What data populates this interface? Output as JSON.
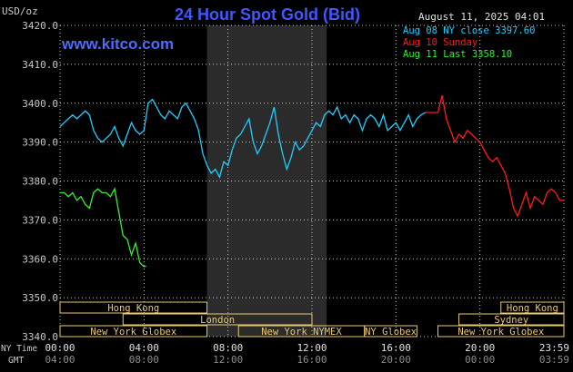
{
  "header": {
    "title": "24 Hour Spot Gold (Bid)",
    "currency_label": "USD/oz",
    "date_label": "August 11, 2025 04:01",
    "site": "www.kitco.com"
  },
  "legend": [
    {
      "text": "Aug 08 NY close 3397.60",
      "color": "#22ccff"
    },
    {
      "text": "Aug 10 Sunday",
      "color": "#ff1a1a"
    },
    {
      "text": "Aug 11 Last 3358.10",
      "color": "#33ee33"
    }
  ],
  "axis": {
    "y_ticks": [
      "3420.0",
      "3410.0",
      "3400.0",
      "3390.0",
      "3380.0",
      "3370.0",
      "3360.0",
      "3350.0",
      "3340.0"
    ],
    "ny_time_label": "NY Time",
    "gmt_label": "GMT",
    "ny_ticks": [
      "00:00",
      "04:00",
      "08:00",
      "12:00",
      "16:00",
      "20:00",
      "23:59"
    ],
    "gmt_ticks": [
      "04:00",
      "08:00",
      "12:00",
      "16:00",
      "20:00",
      "00:00",
      "03:59"
    ]
  },
  "sessions": {
    "hong_kong_1": "Hong Kong",
    "hong_kong_2": "Hong Kong",
    "london": "London",
    "new_york_globex_1": "New York Globex",
    "new_york_globex_2": "New York Globex",
    "new_york_nymex": "New York NYMEX",
    "ny_globex": "NY Globex",
    "sydney": "Sydney"
  },
  "colors": {
    "background": "#000000",
    "grid": "#c8c8c8",
    "highlight": "#2b2b2b",
    "title": "#3f57ff",
    "site": "#4f6bff",
    "session_box": "#e8c870",
    "tick_gray": "#8c8c8c"
  },
  "chart_data": {
    "type": "line",
    "x_unit": "NY time (hours)",
    "x_range": [
      0,
      24
    ],
    "ylim": [
      3340,
      3420
    ],
    "highlighted_x_range": [
      7.0,
      12.7
    ],
    "series": [
      {
        "name": "Aug 08 NY close 3397.60",
        "color": "#22ccff",
        "x": [
          0.0,
          0.2,
          0.4,
          0.6,
          0.8,
          1.0,
          1.2,
          1.4,
          1.6,
          1.8,
          2.0,
          2.2,
          2.4,
          2.6,
          2.8,
          3.0,
          3.2,
          3.4,
          3.6,
          3.8,
          4.0,
          4.2,
          4.4,
          4.6,
          4.8,
          5.0,
          5.2,
          5.4,
          5.6,
          5.8,
          6.0,
          6.2,
          6.4,
          6.6,
          6.8,
          7.0,
          7.2,
          7.4,
          7.6,
          7.8,
          8.0,
          8.2,
          8.4,
          8.6,
          8.8,
          9.0,
          9.2,
          9.4,
          9.6,
          9.8,
          10.0,
          10.2,
          10.4,
          10.6,
          10.8,
          11.0,
          11.2,
          11.4,
          11.6,
          11.8,
          12.0,
          12.2,
          12.4,
          12.6,
          12.8,
          13.0,
          13.2,
          13.4,
          13.6,
          13.8,
          14.0,
          14.2,
          14.4,
          14.6,
          14.8,
          15.0,
          15.2,
          15.4,
          15.6,
          15.8,
          16.0,
          16.2,
          16.4,
          16.6,
          16.8,
          17.0,
          17.2,
          17.4
        ],
        "y": [
          3394,
          3395,
          3396,
          3397,
          3396,
          3397,
          3398,
          3397,
          3393,
          3391,
          3390,
          3391,
          3392,
          3394,
          3391,
          3389,
          3392,
          3395,
          3393,
          3392,
          3393,
          3400,
          3401,
          3399,
          3397,
          3396,
          3398,
          3397,
          3396,
          3399,
          3400,
          3398,
          3396,
          3393,
          3387,
          3384,
          3382,
          3383,
          3381,
          3385,
          3384,
          3388,
          3391,
          3392,
          3394,
          3396,
          3390,
          3387,
          3389,
          3392,
          3395,
          3399,
          3392,
          3387,
          3383,
          3386,
          3390,
          3388,
          3389,
          3391,
          3393,
          3395,
          3394,
          3397,
          3398,
          3397,
          3399,
          3396,
          3397,
          3395,
          3397,
          3396,
          3393,
          3396,
          3397,
          3396,
          3394,
          3397,
          3393,
          3394,
          3395,
          3393,
          3395,
          3397,
          3394,
          3396,
          3397,
          3397.6
        ]
      },
      {
        "name": "Aug 10 Sunday",
        "color": "#ff1a1a",
        "x": [
          17.4,
          17.6,
          17.8,
          18.0,
          18.2,
          18.4,
          18.6,
          18.8,
          19.0,
          19.2,
          19.4,
          19.6,
          19.8,
          20.0,
          20.2,
          20.4,
          20.6,
          20.8,
          21.0,
          21.2,
          21.4,
          21.6,
          21.8,
          22.0,
          22.2,
          22.4,
          22.6,
          22.8,
          23.0,
          23.2,
          23.4,
          23.6,
          23.8,
          24.0
        ],
        "y": [
          3397.6,
          3397.6,
          3397.6,
          3397.6,
          3402,
          3396,
          3393,
          3390,
          3392,
          3391,
          3393,
          3392,
          3391,
          3390,
          3388,
          3386,
          3385,
          3386,
          3384,
          3382,
          3378,
          3373,
          3371,
          3374,
          3377,
          3373,
          3376,
          3375,
          3374,
          3377,
          3378,
          3377,
          3375,
          3375
        ]
      },
      {
        "name": "Aug 11 Last 3358.10",
        "color": "#33ee33",
        "x": [
          0.0,
          0.2,
          0.4,
          0.6,
          0.8,
          1.0,
          1.2,
          1.4,
          1.6,
          1.8,
          2.0,
          2.2,
          2.4,
          2.6,
          2.8,
          3.0,
          3.2,
          3.4,
          3.6,
          3.8,
          4.0,
          4.1
        ],
        "y": [
          3377,
          3377,
          3376,
          3377,
          3375,
          3376,
          3374,
          3373,
          3377,
          3378,
          3377,
          3377,
          3376,
          3378,
          3372,
          3366,
          3365,
          3361,
          3364,
          3359,
          3358,
          3358.1
        ]
      }
    ],
    "session_bars": [
      {
        "key": "hong_kong_1",
        "x0": 0.0,
        "x1": 7.0,
        "row": 0
      },
      {
        "key": "hong_kong_2",
        "x0": 21.0,
        "x1": 24.0,
        "row": 0
      },
      {
        "key": "london",
        "x0": 3.0,
        "x1": 12.0,
        "row": 1
      },
      {
        "key": "sydney",
        "x0": 19.0,
        "x1": 24.0,
        "row": 1
      },
      {
        "key": "new_york_globex_1",
        "x0": 0.0,
        "x1": 7.0,
        "row": 2
      },
      {
        "key": "new_york_nymex",
        "x0": 8.5,
        "x1": 14.5,
        "row": 2
      },
      {
        "key": "ny_globex",
        "x0": 14.5,
        "x1": 17.0,
        "row": 2
      },
      {
        "key": "new_york_globex_2",
        "x0": 18.0,
        "x1": 24.0,
        "row": 2
      }
    ]
  }
}
